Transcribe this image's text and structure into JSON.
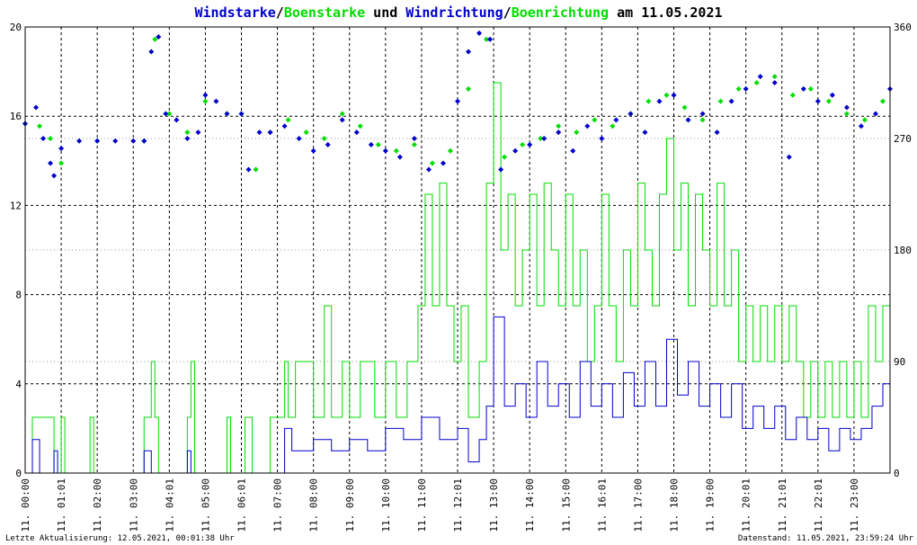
{
  "title": {
    "part1": "Windstarke",
    "sep1": "/",
    "part2": "Boenstarke",
    "part3": " und ",
    "part4": "Windrichtung",
    "sep2": "/",
    "part5": "Boenrichtung",
    "part6": " am 11.05.2021",
    "colors": {
      "blue": "#0000cc",
      "green": "#00dd00",
      "black": "#000000"
    }
  },
  "footer": {
    "left": "Letzte Aktualisierung: 12.05.2021, 00:01:38 Uhr",
    "right": "Datenstand: 11.05.2021, 23:59:24 Uhr"
  },
  "chart_data": {
    "type": "line",
    "x_range_hours": [
      0,
      24
    ],
    "y_left": {
      "min": 0,
      "max": 20,
      "ticks": [
        "0",
        "4",
        "8",
        "12",
        "16",
        "20"
      ]
    },
    "y_right": {
      "min": 0,
      "max": 360,
      "ticks": [
        "0",
        "90",
        "180",
        "270",
        "360"
      ]
    },
    "x_tick_labels": [
      "11. 00:00",
      "11. 01:01",
      "11. 02:00",
      "11. 03:00",
      "11. 04:01",
      "11. 05:00",
      "11. 06:01",
      "11. 07:00",
      "11. 08:00",
      "11. 09:00",
      "11. 10:00",
      "11. 11:00",
      "11. 12:01",
      "11. 13:00",
      "11. 14:00",
      "11. 15:00",
      "11. 16:01",
      "11. 17:00",
      "11. 18:00",
      "11. 19:00",
      "11. 20:01",
      "11. 21:01",
      "11. 22:01",
      "11. 23:00"
    ],
    "grid": true,
    "colors": {
      "wind": "#0000cc",
      "gust": "#00dd00",
      "grid": "#000000"
    },
    "gust_speed": [
      [
        0.0,
        0
      ],
      [
        0.2,
        2.5
      ],
      [
        0.7,
        2.5
      ],
      [
        0.8,
        0
      ],
      [
        1.0,
        2.5
      ],
      [
        1.1,
        0
      ],
      [
        1.8,
        2.5
      ],
      [
        1.9,
        0
      ],
      [
        3.3,
        2.5
      ],
      [
        3.5,
        5
      ],
      [
        3.6,
        2.5
      ],
      [
        3.7,
        0
      ],
      [
        4.5,
        2.5
      ],
      [
        4.6,
        5
      ],
      [
        4.7,
        0
      ],
      [
        5.6,
        2.5
      ],
      [
        5.7,
        0
      ],
      [
        6.1,
        2.5
      ],
      [
        6.3,
        0
      ],
      [
        6.8,
        2.5
      ],
      [
        7.2,
        5
      ],
      [
        7.3,
        2.5
      ],
      [
        7.5,
        5
      ],
      [
        8.0,
        2.5
      ],
      [
        8.3,
        7.5
      ],
      [
        8.5,
        2.5
      ],
      [
        8.8,
        5
      ],
      [
        9.0,
        2.5
      ],
      [
        9.3,
        5
      ],
      [
        9.7,
        2.5
      ],
      [
        10.0,
        5
      ],
      [
        10.3,
        2.5
      ],
      [
        10.6,
        5
      ],
      [
        10.9,
        7.5
      ],
      [
        11.1,
        12.5
      ],
      [
        11.3,
        7.5
      ],
      [
        11.5,
        13
      ],
      [
        11.7,
        7.5
      ],
      [
        11.9,
        5
      ],
      [
        12.1,
        7.5
      ],
      [
        12.3,
        2.5
      ],
      [
        12.6,
        5
      ],
      [
        12.8,
        13
      ],
      [
        13.0,
        17.5
      ],
      [
        13.2,
        10
      ],
      [
        13.4,
        12.5
      ],
      [
        13.6,
        7.5
      ],
      [
        13.8,
        10
      ],
      [
        14.0,
        12.5
      ],
      [
        14.2,
        7.5
      ],
      [
        14.4,
        13
      ],
      [
        14.6,
        10
      ],
      [
        14.8,
        7.5
      ],
      [
        15.0,
        12.5
      ],
      [
        15.2,
        7.5
      ],
      [
        15.4,
        10
      ],
      [
        15.6,
        5
      ],
      [
        15.8,
        7.5
      ],
      [
        16.0,
        12.5
      ],
      [
        16.2,
        7.5
      ],
      [
        16.4,
        5
      ],
      [
        16.6,
        10
      ],
      [
        16.8,
        7.5
      ],
      [
        17.0,
        13
      ],
      [
        17.2,
        10
      ],
      [
        17.4,
        7.5
      ],
      [
        17.6,
        12.5
      ],
      [
        17.8,
        15
      ],
      [
        18.0,
        10
      ],
      [
        18.2,
        13
      ],
      [
        18.4,
        7.5
      ],
      [
        18.6,
        12.5
      ],
      [
        18.8,
        10
      ],
      [
        19.0,
        7.5
      ],
      [
        19.2,
        13
      ],
      [
        19.4,
        7.5
      ],
      [
        19.6,
        10
      ],
      [
        19.8,
        5
      ],
      [
        20.0,
        7.5
      ],
      [
        20.2,
        5
      ],
      [
        20.4,
        7.5
      ],
      [
        20.6,
        5
      ],
      [
        20.8,
        7.5
      ],
      [
        21.0,
        5
      ],
      [
        21.2,
        7.5
      ],
      [
        21.4,
        5
      ],
      [
        21.6,
        2.5
      ],
      [
        21.8,
        5
      ],
      [
        22.0,
        2.5
      ],
      [
        22.2,
        5
      ],
      [
        22.4,
        2.5
      ],
      [
        22.6,
        5
      ],
      [
        22.8,
        2.5
      ],
      [
        23.0,
        5
      ],
      [
        23.2,
        2.5
      ],
      [
        23.4,
        7.5
      ],
      [
        23.6,
        5
      ],
      [
        23.8,
        7.5
      ],
      [
        24.0,
        2.5
      ]
    ],
    "wind_speed": [
      [
        0.0,
        0
      ],
      [
        0.2,
        1.5
      ],
      [
        0.4,
        0
      ],
      [
        0.8,
        1
      ],
      [
        0.9,
        0
      ],
      [
        3.3,
        1
      ],
      [
        3.5,
        0
      ],
      [
        4.5,
        1
      ],
      [
        4.6,
        0
      ],
      [
        6.8,
        0
      ],
      [
        7.2,
        2
      ],
      [
        7.4,
        1
      ],
      [
        8.0,
        1.5
      ],
      [
        8.5,
        1
      ],
      [
        9.0,
        1.5
      ],
      [
        9.5,
        1
      ],
      [
        10.0,
        2
      ],
      [
        10.5,
        1.5
      ],
      [
        11.0,
        2.5
      ],
      [
        11.5,
        1.5
      ],
      [
        12.0,
        2
      ],
      [
        12.3,
        0.5
      ],
      [
        12.6,
        1.5
      ],
      [
        12.8,
        3
      ],
      [
        13.0,
        7
      ],
      [
        13.3,
        3
      ],
      [
        13.6,
        4
      ],
      [
        13.9,
        2.5
      ],
      [
        14.2,
        5
      ],
      [
        14.5,
        3
      ],
      [
        14.8,
        4
      ],
      [
        15.1,
        2.5
      ],
      [
        15.4,
        5
      ],
      [
        15.7,
        3
      ],
      [
        16.0,
        4
      ],
      [
        16.3,
        2.5
      ],
      [
        16.6,
        4.5
      ],
      [
        16.9,
        3
      ],
      [
        17.2,
        5
      ],
      [
        17.5,
        3
      ],
      [
        17.8,
        6
      ],
      [
        18.1,
        3.5
      ],
      [
        18.4,
        5
      ],
      [
        18.7,
        3
      ],
      [
        19.0,
        4
      ],
      [
        19.3,
        2.5
      ],
      [
        19.6,
        4
      ],
      [
        19.9,
        2
      ],
      [
        20.2,
        3
      ],
      [
        20.5,
        2
      ],
      [
        20.8,
        3
      ],
      [
        21.1,
        1.5
      ],
      [
        21.4,
        2.5
      ],
      [
        21.7,
        1.5
      ],
      [
        22.0,
        2
      ],
      [
        22.3,
        1
      ],
      [
        22.6,
        2
      ],
      [
        22.9,
        1.5
      ],
      [
        23.2,
        2
      ],
      [
        23.5,
        3
      ],
      [
        23.8,
        4
      ],
      [
        24.0,
        2
      ]
    ],
    "wind_direction": [
      [
        0.0,
        282
      ],
      [
        0.3,
        295
      ],
      [
        0.5,
        270
      ],
      [
        0.7,
        250
      ],
      [
        0.8,
        240
      ],
      [
        1.0,
        262
      ],
      [
        1.5,
        268
      ],
      [
        2.0,
        268
      ],
      [
        2.5,
        268
      ],
      [
        3.0,
        268
      ],
      [
        3.3,
        268
      ],
      [
        3.5,
        340
      ],
      [
        3.7,
        352
      ],
      [
        3.9,
        290
      ],
      [
        4.2,
        285
      ],
      [
        4.5,
        270
      ],
      [
        4.8,
        275
      ],
      [
        5.0,
        305
      ],
      [
        5.3,
        300
      ],
      [
        5.6,
        290
      ],
      [
        6.0,
        290
      ],
      [
        6.2,
        245
      ],
      [
        6.5,
        275
      ],
      [
        6.8,
        275
      ],
      [
        7.2,
        280
      ],
      [
        7.6,
        270
      ],
      [
        8.0,
        260
      ],
      [
        8.4,
        265
      ],
      [
        8.8,
        285
      ],
      [
        9.2,
        275
      ],
      [
        9.6,
        265
      ],
      [
        10.0,
        260
      ],
      [
        10.4,
        255
      ],
      [
        10.8,
        270
      ],
      [
        11.2,
        245
      ],
      [
        11.6,
        250
      ],
      [
        12.0,
        300
      ],
      [
        12.3,
        340
      ],
      [
        12.6,
        355
      ],
      [
        12.9,
        350
      ],
      [
        13.2,
        245
      ],
      [
        13.6,
        260
      ],
      [
        14.0,
        265
      ],
      [
        14.4,
        270
      ],
      [
        14.8,
        275
      ],
      [
        15.2,
        260
      ],
      [
        15.6,
        280
      ],
      [
        16.0,
        270
      ],
      [
        16.4,
        285
      ],
      [
        16.8,
        290
      ],
      [
        17.2,
        275
      ],
      [
        17.6,
        300
      ],
      [
        18.0,
        305
      ],
      [
        18.4,
        285
      ],
      [
        18.8,
        290
      ],
      [
        19.2,
        275
      ],
      [
        19.6,
        300
      ],
      [
        20.0,
        310
      ],
      [
        20.4,
        320
      ],
      [
        20.8,
        315
      ],
      [
        21.2,
        255
      ],
      [
        21.6,
        310
      ],
      [
        22.0,
        300
      ],
      [
        22.4,
        305
      ],
      [
        22.8,
        295
      ],
      [
        23.2,
        280
      ],
      [
        23.6,
        290
      ],
      [
        24.0,
        310
      ]
    ],
    "gust_direction": [
      [
        0.0,
        282
      ],
      [
        0.4,
        280
      ],
      [
        0.7,
        270
      ],
      [
        1.0,
        250
      ],
      [
        2.0,
        268
      ],
      [
        3.3,
        268
      ],
      [
        3.6,
        350
      ],
      [
        4.0,
        290
      ],
      [
        4.5,
        275
      ],
      [
        5.0,
        300
      ],
      [
        5.6,
        290
      ],
      [
        6.0,
        290
      ],
      [
        6.4,
        245
      ],
      [
        6.8,
        275
      ],
      [
        7.3,
        285
      ],
      [
        7.8,
        275
      ],
      [
        8.3,
        270
      ],
      [
        8.8,
        290
      ],
      [
        9.3,
        280
      ],
      [
        9.8,
        265
      ],
      [
        10.3,
        260
      ],
      [
        10.8,
        265
      ],
      [
        11.3,
        250
      ],
      [
        11.8,
        260
      ],
      [
        12.3,
        310
      ],
      [
        12.8,
        350
      ],
      [
        13.3,
        255
      ],
      [
        13.8,
        265
      ],
      [
        14.3,
        270
      ],
      [
        14.8,
        280
      ],
      [
        15.3,
        275
      ],
      [
        15.8,
        285
      ],
      [
        16.3,
        280
      ],
      [
        16.8,
        290
      ],
      [
        17.3,
        300
      ],
      [
        17.8,
        305
      ],
      [
        18.3,
        295
      ],
      [
        18.8,
        285
      ],
      [
        19.3,
        300
      ],
      [
        19.8,
        310
      ],
      [
        20.3,
        315
      ],
      [
        20.8,
        320
      ],
      [
        21.3,
        305
      ],
      [
        21.8,
        310
      ],
      [
        22.3,
        300
      ],
      [
        22.8,
        290
      ],
      [
        23.3,
        285
      ],
      [
        23.8,
        300
      ]
    ]
  }
}
